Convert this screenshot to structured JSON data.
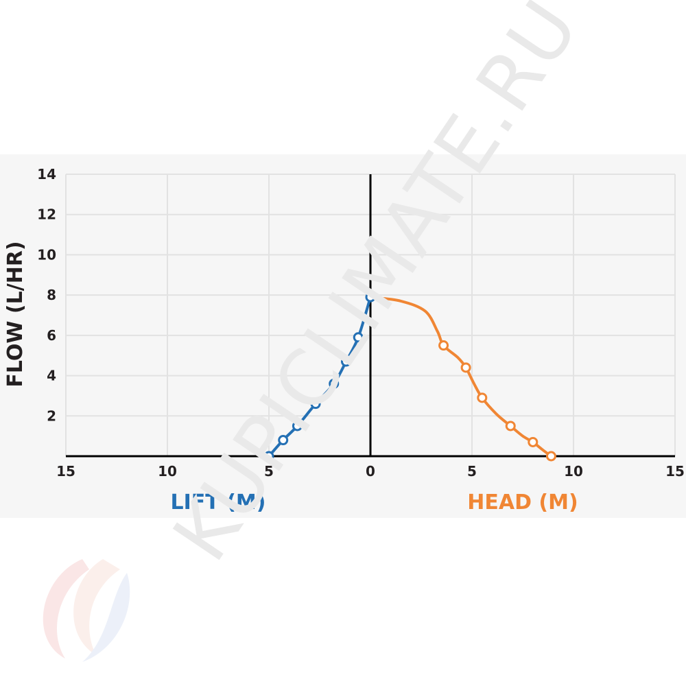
{
  "watermark": "KUPICLIMATE.RU",
  "colors": {
    "lift": "#2470b4",
    "head": "#f08634",
    "axis": "#000000",
    "grid": "#e2e2e2",
    "panel": "#f6f6f6"
  },
  "chart_data": {
    "type": "line",
    "ylabel": "FLOW (L/HR)",
    "xlabel_left": "LIFT (M)",
    "xlabel_right": "HEAD (M)",
    "xlim": [
      -15,
      15
    ],
    "ylim": [
      0,
      14
    ],
    "x_ticks": [
      -15,
      -10,
      -5,
      0,
      5,
      10,
      15
    ],
    "x_tick_labels": [
      "15",
      "10",
      "5",
      "0",
      "5",
      "10",
      "15"
    ],
    "y_ticks": [
      2,
      4,
      6,
      8,
      10,
      12,
      14
    ],
    "y_tick_labels": [
      "2",
      "4",
      "6",
      "8",
      "10",
      "12",
      "14"
    ],
    "grid": true,
    "series": [
      {
        "key": "lift",
        "points": [
          [
            -5.0,
            0.0
          ],
          [
            -4.3,
            0.8
          ],
          [
            -3.6,
            1.5
          ],
          [
            -2.7,
            2.6
          ],
          [
            -1.8,
            3.6
          ],
          [
            -1.2,
            4.7
          ],
          [
            -0.6,
            5.9
          ],
          [
            0.0,
            7.9
          ]
        ]
      },
      {
        "key": "head",
        "points": [
          [
            3.6,
            5.5
          ],
          [
            4.7,
            4.4
          ],
          [
            5.5,
            2.9
          ],
          [
            6.9,
            1.5
          ],
          [
            8.0,
            0.7
          ],
          [
            8.9,
            0.0
          ]
        ],
        "curve": [
          [
            0.0,
            7.9
          ],
          [
            1.5,
            7.7
          ],
          [
            2.7,
            7.2
          ],
          [
            3.3,
            6.2
          ],
          [
            3.6,
            5.5
          ],
          [
            4.3,
            4.9
          ],
          [
            4.7,
            4.4
          ],
          [
            5.1,
            3.6
          ],
          [
            5.5,
            2.9
          ],
          [
            6.2,
            2.1
          ],
          [
            6.9,
            1.5
          ],
          [
            7.5,
            1.0
          ],
          [
            8.0,
            0.7
          ],
          [
            8.5,
            0.3
          ],
          [
            8.9,
            0.0
          ]
        ]
      }
    ]
  }
}
